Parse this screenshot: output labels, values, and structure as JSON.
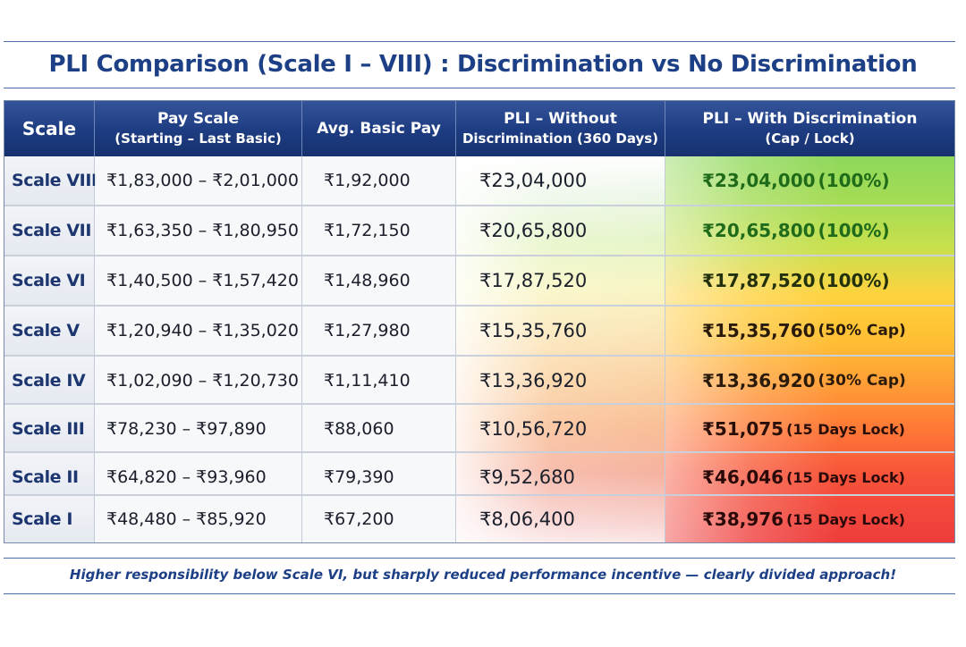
{
  "title": "PLI Comparison (Scale I – VIII) : Discrimination vs No Discrimination",
  "headers": {
    "scale": "Scale",
    "pay_scale_line1": "Pay Scale",
    "pay_scale_line2": "(Starting – Last Basic)",
    "avg_basic": "Avg. Basic Pay",
    "pli_without_line1": "PLI – Without",
    "pli_without_line2": "Discrimination (360 Days)",
    "pli_with_line1": "PLI – With Discrimination",
    "pli_with_line2": "(Cap / Lock)"
  },
  "rows": [
    {
      "scale": "Scale VIII",
      "pay_scale": "₹1,83,000 – ₹2,01,000",
      "avg_basic": "₹1,92,000",
      "pli_without": "₹23,04,000",
      "pli_with": "₹23,04,000",
      "pli_with_note": "(100%)"
    },
    {
      "scale": "Scale VII",
      "pay_scale": "₹1,63,350 – ₹1,80,950",
      "avg_basic": "₹1,72,150",
      "pli_without": "₹20,65,800",
      "pli_with": "₹20,65,800",
      "pli_with_note": "(100%)"
    },
    {
      "scale": "Scale VI",
      "pay_scale": "₹1,40,500 – ₹1,57,420",
      "avg_basic": "₹1,48,960",
      "pli_without": "₹17,87,520",
      "pli_with": "₹17,87,520",
      "pli_with_note": "(100%)"
    },
    {
      "scale": "Scale V",
      "pay_scale": "₹1,20,940 – ₹1,35,020",
      "avg_basic": "₹1,27,980",
      "pli_without": "₹15,35,760",
      "pli_with": "₹15,35,760",
      "pli_with_note": "(50% Cap)"
    },
    {
      "scale": "Scale IV",
      "pay_scale": "₹1,02,090 – ₹1,20,730",
      "avg_basic": "₹1,11,410",
      "pli_without": "₹13,36,920",
      "pli_with": "₹13,36,920",
      "pli_with_note": "(30% Cap)"
    },
    {
      "scale": "Scale III",
      "pay_scale": "₹78,230 – ₹97,890",
      "avg_basic": "₹88,060",
      "pli_without": "₹10,56,720",
      "pli_with": "₹51,075",
      "pli_with_note": "(15 Days Lock)"
    },
    {
      "scale": "Scale II",
      "pay_scale": "₹64,820 – ₹93,960",
      "avg_basic": "₹79,390",
      "pli_without": "₹9,52,680",
      "pli_with": "₹46,046",
      "pli_with_note": "(15 Days Lock)"
    },
    {
      "scale": "Scale I",
      "pay_scale": "₹48,480 – ₹85,920",
      "avg_basic": "₹67,200",
      "pli_without": "₹8,06,400",
      "pli_with": "₹38,976",
      "pli_with_note": "(15 Days Lock)"
    }
  ],
  "footer": "Higher responsibility below Scale VI, but sharply reduced performance incentive — clearly divided approach!",
  "colors": {
    "header_bg": "#1d3b80",
    "title_text": "#1c3f86",
    "green_text": "#1f6b1a",
    "dark_text": "#1a1f2b"
  }
}
